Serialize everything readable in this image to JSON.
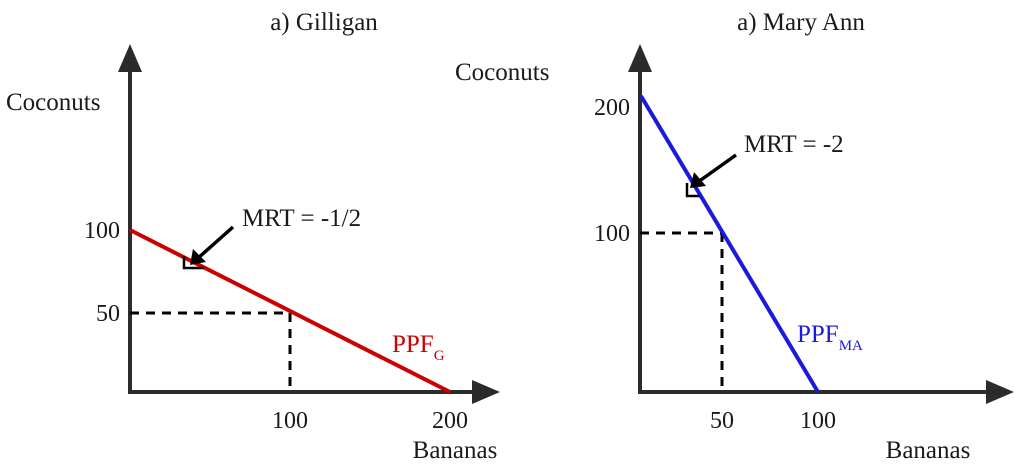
{
  "chart_data": [
    {
      "type": "line",
      "title": "a) Gilligan",
      "xlabel": "Bananas",
      "ylabel": "Coconuts",
      "xlim": [
        0,
        220
      ],
      "ylim": [
        0,
        200
      ],
      "x_ticks": [
        "100",
        "200"
      ],
      "y_ticks": [
        "50",
        "100"
      ],
      "series": [
        {
          "name": "PPF",
          "subscript": "G",
          "color": "#cc0000",
          "x": [
            0,
            200
          ],
          "y": [
            100,
            0
          ]
        }
      ],
      "guide_point": {
        "x": 100,
        "y": 50
      },
      "annotation": {
        "text": "MRT = -1/2",
        "x": 40,
        "y": 80
      }
    },
    {
      "type": "line",
      "title": "a) Mary Ann",
      "xlabel": "Bananas",
      "ylabel": "Coconuts",
      "xlim": [
        0,
        200
      ],
      "ylim": [
        0,
        220
      ],
      "x_ticks": [
        "50",
        "100"
      ],
      "y_ticks": [
        "100",
        "200"
      ],
      "series": [
        {
          "name": "PPF",
          "subscript": "MA",
          "color": "#1a1add",
          "x": [
            0,
            100
          ],
          "y": [
            200,
            0
          ]
        }
      ],
      "guide_point": {
        "x": 50,
        "y": 100
      },
      "annotation": {
        "text": "MRT = -2",
        "x": 30,
        "y": 140
      }
    }
  ]
}
